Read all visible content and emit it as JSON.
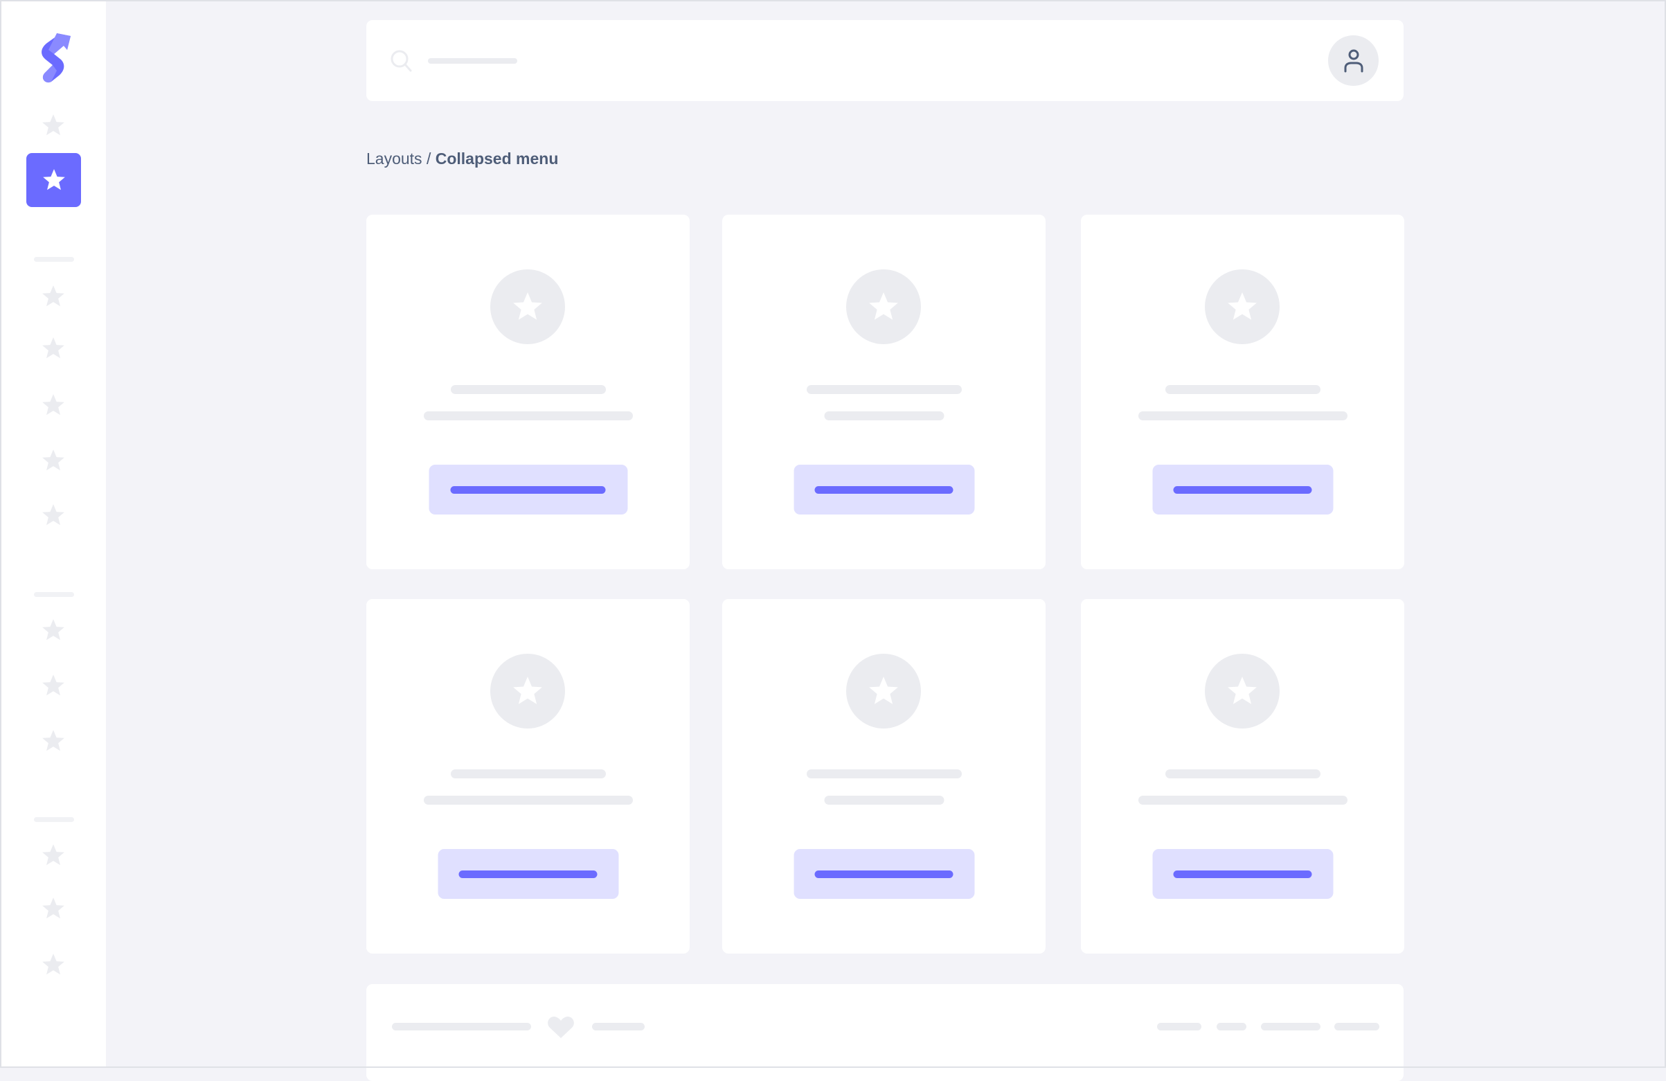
{
  "colors": {
    "accent": "#6b6bff",
    "accent_soft": "#e0e0ff",
    "placeholder": "#ebecf0",
    "background": "#f3f3f8",
    "text": "#4e5d78"
  },
  "sidebar": {
    "logo_icon": "brand-s-logo",
    "items": [
      {
        "icon": "star-icon",
        "active": false
      },
      {
        "icon": "star-icon",
        "active": true
      },
      {
        "icon": "star-icon",
        "active": false
      },
      {
        "icon": "star-icon",
        "active": false
      },
      {
        "icon": "star-icon",
        "active": false
      },
      {
        "icon": "star-icon",
        "active": false
      },
      {
        "icon": "star-icon",
        "active": false
      },
      {
        "icon": "star-icon",
        "active": false
      },
      {
        "icon": "star-icon",
        "active": false
      },
      {
        "icon": "star-icon",
        "active": false
      },
      {
        "icon": "star-icon",
        "active": false
      },
      {
        "icon": "star-icon",
        "active": false
      },
      {
        "icon": "star-icon",
        "active": false
      }
    ]
  },
  "header": {
    "search_icon": "search-icon",
    "avatar_icon": "user-icon"
  },
  "breadcrumb": {
    "parent": "Layouts",
    "separator": " / ",
    "current": "Collapsed menu"
  },
  "cards": [
    {
      "icon": "star-icon"
    },
    {
      "icon": "star-icon"
    },
    {
      "icon": "star-icon"
    },
    {
      "icon": "star-icon"
    },
    {
      "icon": "star-icon"
    },
    {
      "icon": "star-icon"
    }
  ],
  "footer": {
    "icon": "heart-icon"
  }
}
